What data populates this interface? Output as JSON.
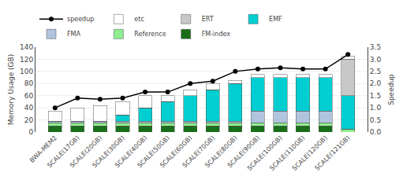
{
  "chart_data": {
    "type": "bar",
    "stacked": true,
    "categories": [
      "BWA-MEM2",
      "SCALE(17GB)",
      "SCALE(20GB)",
      "SCALE(30GB)",
      "SCALE(40GB)",
      "SCALE(50GB)",
      "SCALE(60GB)",
      "SCALE(70GB)",
      "SCALE(80GB)",
      "SCALE(90GB)",
      "SCALE(100GB)",
      "SCALE(110GB)",
      "SCALE(120GB)",
      "SCALE(121GB)"
    ],
    "series": [
      {
        "name": "FM-index",
        "color": "#1a6e1a",
        "values": [
          10,
          10,
          10,
          10,
          10,
          10,
          10,
          10,
          10,
          10,
          10,
          10,
          10,
          0
        ]
      },
      {
        "name": "Reference",
        "color": "#90ee90",
        "values": [
          5,
          5,
          5,
          5,
          5,
          5,
          5,
          5,
          5,
          5,
          5,
          5,
          5,
          5
        ]
      },
      {
        "name": "FMA",
        "color": "#b0c4de",
        "values": [
          3,
          3,
          3,
          3,
          3,
          3,
          3,
          3,
          3,
          20,
          20,
          20,
          20,
          0
        ]
      },
      {
        "name": "EMF",
        "color": "#00ced1",
        "values": [
          0,
          0,
          0,
          10,
          22,
          32,
          42,
          52,
          62,
          55,
          55,
          55,
          55,
          55
        ]
      },
      {
        "name": "ERT",
        "color": "#c8c8c8",
        "values": [
          0,
          0,
          0,
          0,
          0,
          0,
          0,
          0,
          0,
          0,
          0,
          0,
          0,
          60
        ]
      },
      {
        "name": "etc",
        "color": "#ffffff",
        "values": [
          17,
          22,
          26,
          22,
          20,
          10,
          10,
          10,
          5,
          5,
          5,
          5,
          5,
          5
        ]
      },
      {
        "name": "speedup",
        "type": "line",
        "axis": "y2",
        "color": "#000000",
        "marker": "circle",
        "values": [
          1.0,
          1.4,
          1.35,
          1.4,
          1.65,
          1.65,
          2.0,
          2.1,
          2.5,
          2.6,
          2.65,
          2.6,
          2.6,
          3.2
        ]
      }
    ],
    "ylabel": "Memory Usage (GB)",
    "y2label": "Speedup",
    "ylim": [
      0,
      140
    ],
    "yticks": [
      0,
      20,
      40,
      60,
      80,
      100,
      120,
      140
    ],
    "y2lim": [
      0,
      3.5
    ],
    "y2ticks": [
      {
        "value": 0,
        "label": "0.0"
      },
      0.5,
      {
        "value": 1,
        "label": "1.0"
      },
      1.5,
      {
        "value": 2,
        "label": "2.0"
      },
      2.5,
      {
        "value": 3,
        "label": "3.0"
      },
      3.5
    ],
    "grid": true,
    "legend": "top"
  }
}
